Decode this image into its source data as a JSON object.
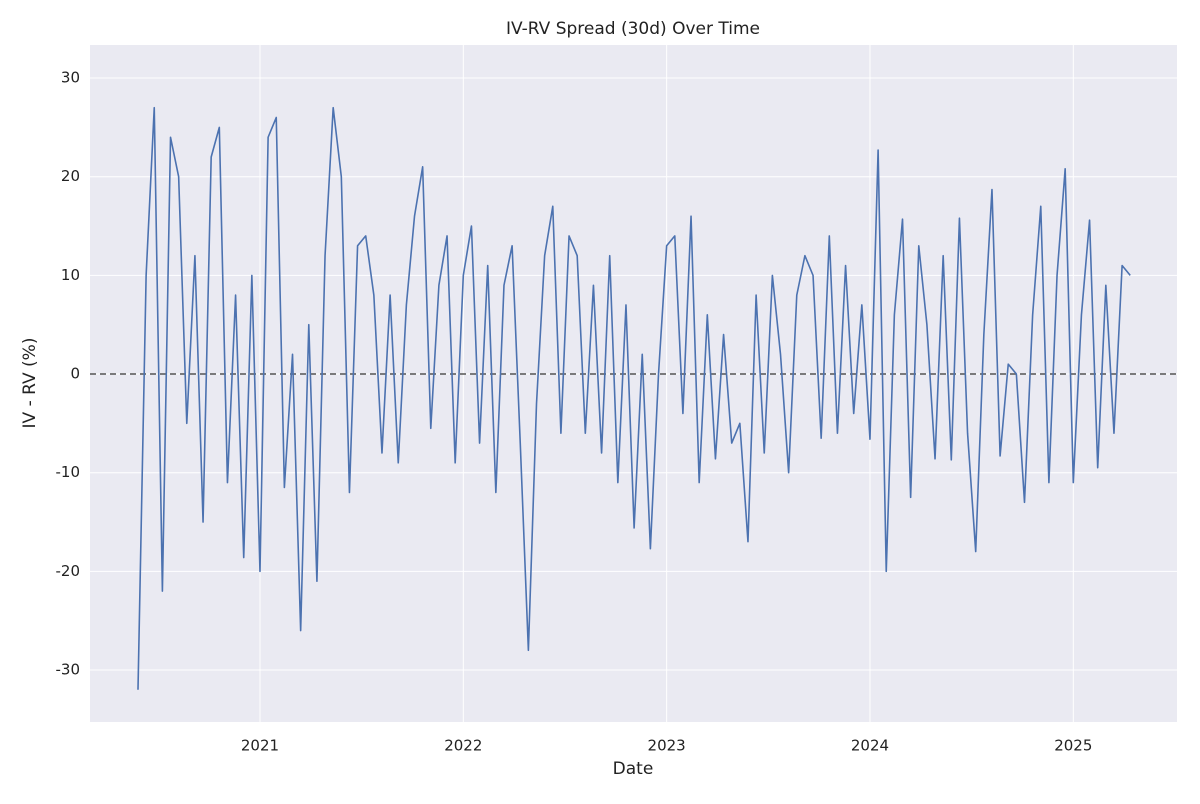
{
  "chart_data": {
    "type": "line",
    "title": "IV-RV Spread (30d) Over Time",
    "x_label": "Date",
    "y_label": "IV - RV (%)",
    "x": [
      2020.4,
      2020.44,
      2020.48,
      2020.52,
      2020.56,
      2020.6,
      2020.64,
      2020.68,
      2020.72,
      2020.76,
      2020.8,
      2020.84,
      2020.88,
      2020.92,
      2020.96,
      2021.0,
      2021.04,
      2021.08,
      2021.12,
      2021.16,
      2021.2,
      2021.24,
      2021.28,
      2021.32,
      2021.36,
      2021.4,
      2021.44,
      2021.48,
      2021.52,
      2021.56,
      2021.6,
      2021.64,
      2021.68,
      2021.72,
      2021.76,
      2021.8,
      2021.84,
      2021.88,
      2021.92,
      2021.96,
      2022.0,
      2022.04,
      2022.08,
      2022.12,
      2022.16,
      2022.2,
      2022.24,
      2022.28,
      2022.32,
      2022.36,
      2022.4,
      2022.44,
      2022.48,
      2022.52,
      2022.56,
      2022.6,
      2022.64,
      2022.68,
      2022.72,
      2022.76,
      2022.8,
      2022.84,
      2022.88,
      2022.92,
      2022.96,
      2023.0,
      2023.04,
      2023.08,
      2023.12,
      2023.16,
      2023.2,
      2023.24,
      2023.28,
      2023.32,
      2023.36,
      2023.4,
      2023.44,
      2023.48,
      2023.52,
      2023.56,
      2023.6,
      2023.64,
      2023.68,
      2023.72,
      2023.76,
      2023.8,
      2023.84,
      2023.88,
      2023.92,
      2023.96,
      2024.0,
      2024.04,
      2024.08,
      2024.12,
      2024.16,
      2024.2,
      2024.24,
      2024.28,
      2024.32,
      2024.36,
      2024.4,
      2024.44,
      2024.48,
      2024.52,
      2024.56,
      2024.6,
      2024.64,
      2024.68,
      2024.72,
      2024.76,
      2024.8,
      2024.84,
      2024.88,
      2024.92,
      2024.96,
      2025.0,
      2025.04,
      2025.08,
      2025.12,
      2025.16,
      2025.2,
      2025.24,
      2025.28
    ],
    "series": [
      {
        "name": "IV-RV Spread",
        "color": "#4c72b0",
        "values": [
          -32,
          10,
          27,
          -22,
          24,
          20,
          -5,
          12,
          -15,
          22,
          25,
          -11,
          8,
          -18.6,
          10,
          -20,
          24,
          26,
          -11.5,
          2,
          -26,
          5,
          -21,
          12,
          27,
          20,
          -12,
          13,
          14,
          8,
          -8,
          8,
          -9,
          7,
          16,
          21,
          -5.5,
          9,
          14,
          -9,
          10,
          15,
          -7,
          11,
          -12,
          9,
          13,
          -7,
          -28,
          -3,
          12,
          17,
          -6,
          14,
          12,
          -6,
          9,
          -8,
          12,
          -11,
          7,
          -15.6,
          2,
          -17.7,
          0,
          13,
          14,
          -4,
          16,
          -11,
          6,
          -8.6,
          4,
          -7,
          -5,
          -17,
          8,
          -8,
          10,
          2,
          -10,
          8,
          12,
          10,
          -6.5,
          14,
          -6,
          11,
          -4,
          7,
          -6.6,
          22.7,
          -20,
          6,
          15.7,
          -12.5,
          13,
          5,
          -8.6,
          12,
          -8.7,
          15.8,
          -6,
          -18,
          4,
          18.7,
          -8.3,
          1,
          0,
          -13,
          6,
          17,
          -11,
          10,
          20.8,
          -11,
          6,
          15.6,
          -9.5,
          9,
          -6,
          11,
          10
        ]
      }
    ],
    "xlim": [
      2020.164,
      2025.51
    ],
    "xticks": [
      2021,
      2022,
      2023,
      2024,
      2025
    ],
    "ylim": [
      -35.27,
      33.35
    ],
    "yticks": [
      -30,
      -20,
      -10,
      0,
      10,
      20,
      30
    ],
    "reference_line": 0,
    "grid": true
  }
}
